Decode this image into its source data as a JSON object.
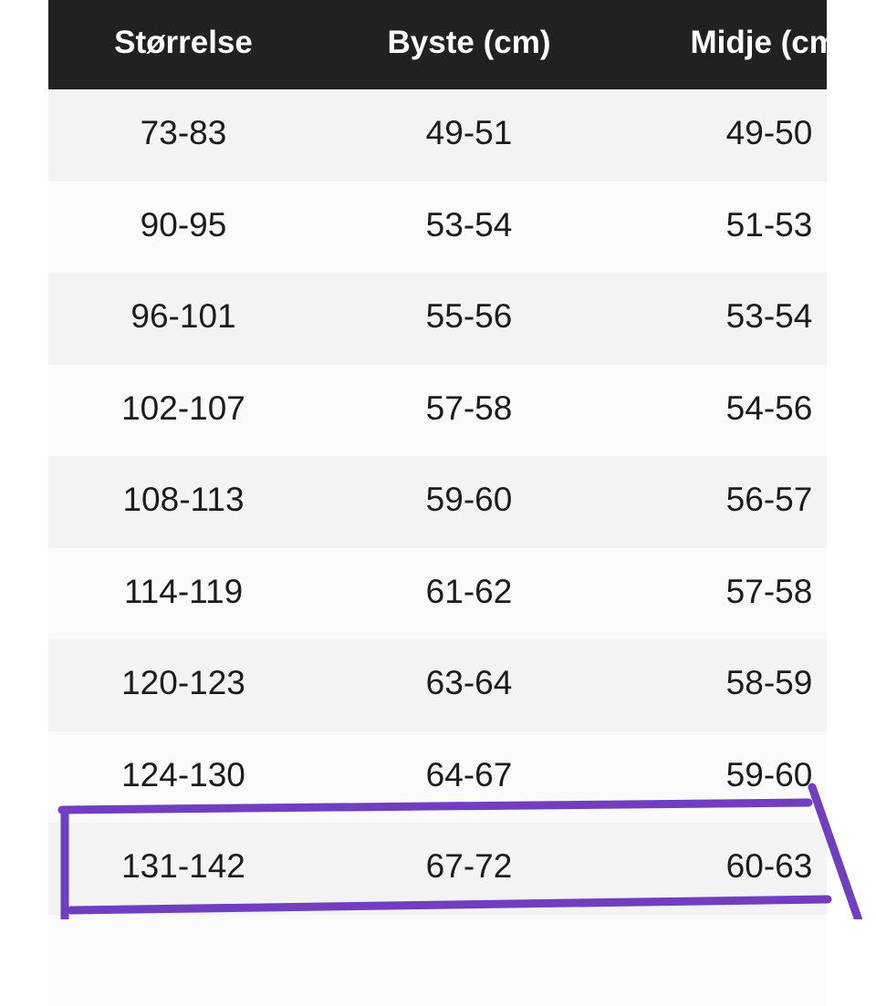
{
  "headers": [
    "Størrelse",
    "Byste (cm)",
    "Midje (cm)"
  ],
  "rows": [
    [
      "73-83",
      "49-51",
      "49-50"
    ],
    [
      "90-95",
      "53-54",
      "51-53"
    ],
    [
      "96-101",
      "55-56",
      "53-54"
    ],
    [
      "102-107",
      "57-58",
      "54-56"
    ],
    [
      "108-113",
      "59-60",
      "56-57"
    ],
    [
      "114-119",
      "61-62",
      "57-58"
    ],
    [
      "120-123",
      "63-64",
      "58-59"
    ],
    [
      "124-130",
      "64-67",
      "59-60"
    ],
    [
      "131-142",
      "67-72",
      "60-63"
    ],
    [
      "",
      "",
      ""
    ]
  ],
  "annotation": {
    "color": "#6f3fbf",
    "highlighted_row": "131-142"
  }
}
